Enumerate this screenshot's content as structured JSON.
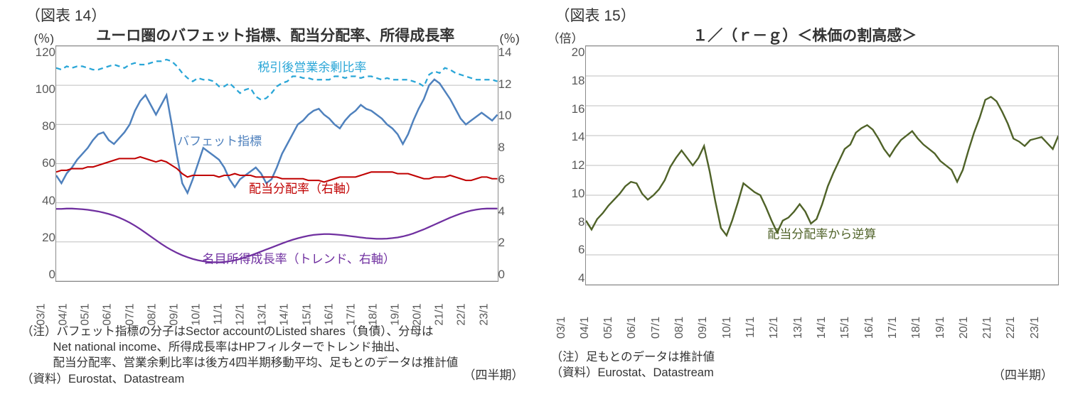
{
  "left": {
    "header": "（図表 14）",
    "title": "ユーロ圏のバフェット指標、配当分配率、所得成長率",
    "y_left_unit": "(％)",
    "y_right_unit": "(％)",
    "y_left": {
      "min": 0,
      "max": 120,
      "step": 20,
      "ticks": [
        0,
        20,
        40,
        60,
        80,
        100,
        120
      ]
    },
    "y_right": {
      "min": 0,
      "max": 14,
      "step": 2,
      "ticks": [
        0,
        2,
        4,
        6,
        8,
        10,
        12,
        14
      ]
    },
    "x_labels": [
      "03/1",
      "04/1",
      "05/1",
      "06/1",
      "07/1",
      "08/1",
      "09/1",
      "10/1",
      "11/1",
      "12/1",
      "13/1",
      "14/1",
      "15/1",
      "16/1",
      "17/1",
      "18/1",
      "19/1",
      "20/1",
      "21/1",
      "22/1",
      "23/1"
    ],
    "n_points": 85,
    "grid_color": "#bfbfbf",
    "background_color": "#ffffff",
    "series": {
      "surplus_ratio": {
        "label": "税引後営業余剰比率",
        "axis": "right",
        "color": "#2aa6d7",
        "line_width": 2.2,
        "dash": "7 5",
        "label_color": "#2aa6d7",
        "label_pos": {
          "x": 0.58,
          "y": 12.8
        },
        "values": [
          12.7,
          12.6,
          12.8,
          12.7,
          12.8,
          12.8,
          12.7,
          12.6,
          12.6,
          12.7,
          12.8,
          12.9,
          12.8,
          12.7,
          12.9,
          13.0,
          12.9,
          12.9,
          13.0,
          13.1,
          13.1,
          13.2,
          13.1,
          12.8,
          12.4,
          12.1,
          11.9,
          12.1,
          12.0,
          12.0,
          11.9,
          11.6,
          11.6,
          11.8,
          11.5,
          11.2,
          11.4,
          11.5,
          11.0,
          10.8,
          10.9,
          11.2,
          11.6,
          11.8,
          11.9,
          12.2,
          12.2,
          12.1,
          12.1,
          12.0,
          12.0,
          12.0,
          12.0,
          12.2,
          12.2,
          12.1,
          12.2,
          12.2,
          12.1,
          12.2,
          12.2,
          12.1,
          12.0,
          12.1,
          12.0,
          12.0,
          12.0,
          12.0,
          11.9,
          11.8,
          11.6,
          12.3,
          12.5,
          12.4,
          12.7,
          12.6,
          12.4,
          12.3,
          12.2,
          12.1,
          12.0,
          12.0,
          12.0,
          12.0,
          11.9
        ]
      },
      "buffett": {
        "label": "バフェット指標",
        "axis": "left",
        "color": "#4f81bd",
        "line_width": 2.4,
        "dash": "",
        "label_color": "#4f81bd",
        "label_pos": {
          "x": 0.37,
          "y_left": 72
        },
        "values": [
          54,
          50,
          55,
          58,
          62,
          65,
          68,
          72,
          75,
          76,
          72,
          70,
          73,
          76,
          80,
          87,
          92,
          95,
          90,
          85,
          90,
          95,
          80,
          64,
          50,
          45,
          52,
          60,
          68,
          66,
          64,
          62,
          58,
          52,
          48,
          52,
          54,
          56,
          58,
          55,
          50,
          52,
          58,
          65,
          70,
          75,
          80,
          82,
          85,
          87,
          88,
          85,
          83,
          80,
          78,
          82,
          85,
          87,
          90,
          88,
          87,
          85,
          83,
          80,
          78,
          75,
          70,
          75,
          82,
          88,
          93,
          100,
          103,
          101,
          97,
          93,
          88,
          83,
          80,
          82,
          84,
          86,
          84,
          82,
          85
        ]
      },
      "payout": {
        "label": "配当分配率（右軸）",
        "axis": "right",
        "color": "#c00000",
        "line_width": 2.0,
        "dash": "",
        "label_color": "#c00000",
        "label_pos": {
          "x": 0.56,
          "y": 5.6
        },
        "values": [
          6.5,
          6.6,
          6.6,
          6.7,
          6.7,
          6.7,
          6.8,
          6.8,
          6.9,
          7.0,
          7.1,
          7.2,
          7.3,
          7.3,
          7.3,
          7.3,
          7.4,
          7.3,
          7.2,
          7.1,
          7.2,
          7.1,
          6.9,
          6.7,
          6.4,
          6.2,
          6.3,
          6.3,
          6.3,
          6.3,
          6.3,
          6.2,
          6.3,
          6.3,
          6.4,
          6.3,
          6.3,
          6.3,
          6.2,
          6.2,
          6.2,
          6.2,
          6.2,
          6.1,
          6.1,
          6.1,
          6.1,
          6.1,
          6.0,
          6.0,
          6.0,
          5.9,
          6.0,
          6.1,
          6.2,
          6.2,
          6.2,
          6.2,
          6.3,
          6.4,
          6.5,
          6.5,
          6.5,
          6.5,
          6.5,
          6.4,
          6.4,
          6.4,
          6.3,
          6.2,
          6.1,
          6.1,
          6.2,
          6.2,
          6.2,
          6.3,
          6.2,
          6.1,
          6.0,
          6.0,
          6.1,
          6.2,
          6.2,
          6.1,
          6.1
        ]
      },
      "income_growth": {
        "label": "名目所得成長率（トレンド、右軸）",
        "axis": "right",
        "color": "#7030a0",
        "line_width": 2.2,
        "dash": "",
        "label_color": "#7030a0",
        "label_pos": {
          "x": 0.55,
          "y": 1.4
        },
        "values": [
          4.3,
          4.3,
          4.32,
          4.32,
          4.3,
          4.28,
          4.25,
          4.2,
          4.15,
          4.08,
          4.0,
          3.9,
          3.78,
          3.64,
          3.48,
          3.3,
          3.1,
          2.88,
          2.66,
          2.44,
          2.22,
          2.02,
          1.84,
          1.68,
          1.54,
          1.42,
          1.32,
          1.24,
          1.18,
          1.14,
          1.12,
          1.12,
          1.14,
          1.18,
          1.24,
          1.32,
          1.42,
          1.52,
          1.64,
          1.76,
          1.88,
          2.0,
          2.12,
          2.24,
          2.36,
          2.46,
          2.55,
          2.63,
          2.7,
          2.75,
          2.78,
          2.8,
          2.8,
          2.78,
          2.75,
          2.72,
          2.68,
          2.64,
          2.6,
          2.56,
          2.54,
          2.52,
          2.52,
          2.53,
          2.56,
          2.6,
          2.66,
          2.74,
          2.84,
          2.96,
          3.08,
          3.22,
          3.36,
          3.5,
          3.64,
          3.78,
          3.9,
          4.02,
          4.12,
          4.2,
          4.26,
          4.3,
          4.32,
          4.32,
          4.32
        ]
      }
    },
    "notes": [
      "（注）バフェット指標の分子はSector accountのListed shares（負債）、分母は",
      "Net national income、所得成長率はHPフィルターでトレンド抽出、",
      "配当分配率、営業余剰比率は後方4四半期移動平均、足もとのデータは推計値"
    ],
    "source": "（資料）Eurostat、Datastream",
    "period_label": "（四半期）"
  },
  "right": {
    "header": "（図表 15）",
    "title": "１／（ｒ－ｇ）＜株価の割高感＞",
    "y_left_unit": "（倍）",
    "y_left": {
      "min": 4,
      "max": 20,
      "step": 2,
      "ticks": [
        4,
        6,
        8,
        10,
        12,
        14,
        16,
        18,
        20
      ]
    },
    "x_labels": [
      "03/1",
      "04/1",
      "05/1",
      "06/1",
      "07/1",
      "08/1",
      "09/1",
      "10/1",
      "11/1",
      "12/1",
      "13/1",
      "14/1",
      "15/1",
      "16/1",
      "17/1",
      "18/1",
      "19/1",
      "20/1",
      "21/1",
      "22/1",
      "23/1"
    ],
    "n_points": 85,
    "grid_color": "#bfbfbf",
    "background_color": "#ffffff",
    "series": {
      "rg": {
        "label": "配当分配率から逆算",
        "color": "#4f6228",
        "line_width": 2.2,
        "dash": "",
        "label_color": "#4f6228",
        "label_pos": {
          "x": 0.5,
          "y": 7.5
        },
        "values": [
          8.3,
          7.7,
          8.4,
          8.8,
          9.3,
          9.7,
          10.1,
          10.6,
          10.9,
          10.8,
          10.1,
          9.7,
          10.0,
          10.4,
          11.0,
          11.9,
          12.5,
          13.0,
          12.5,
          12.0,
          12.5,
          13.3,
          11.6,
          9.6,
          7.8,
          7.3,
          8.3,
          9.5,
          10.8,
          10.5,
          10.2,
          10.0,
          9.2,
          8.3,
          7.5,
          8.3,
          8.5,
          8.9,
          9.4,
          8.9,
          8.1,
          8.4,
          9.4,
          10.6,
          11.5,
          12.3,
          13.1,
          13.4,
          14.2,
          14.5,
          14.7,
          14.4,
          13.8,
          13.1,
          12.6,
          13.2,
          13.7,
          14.0,
          14.3,
          13.8,
          13.4,
          13.1,
          12.8,
          12.3,
          12.0,
          11.7,
          10.9,
          11.7,
          13.0,
          14.2,
          15.2,
          16.4,
          16.6,
          16.3,
          15.6,
          14.8,
          13.8,
          13.6,
          13.3,
          13.7,
          13.8,
          13.9,
          13.5,
          13.1,
          14.0
        ]
      }
    },
    "notes": [
      "（注）足もとのデータは推計値"
    ],
    "source": "（資料）Eurostat、Datastream",
    "period_label": "（四半期）"
  }
}
